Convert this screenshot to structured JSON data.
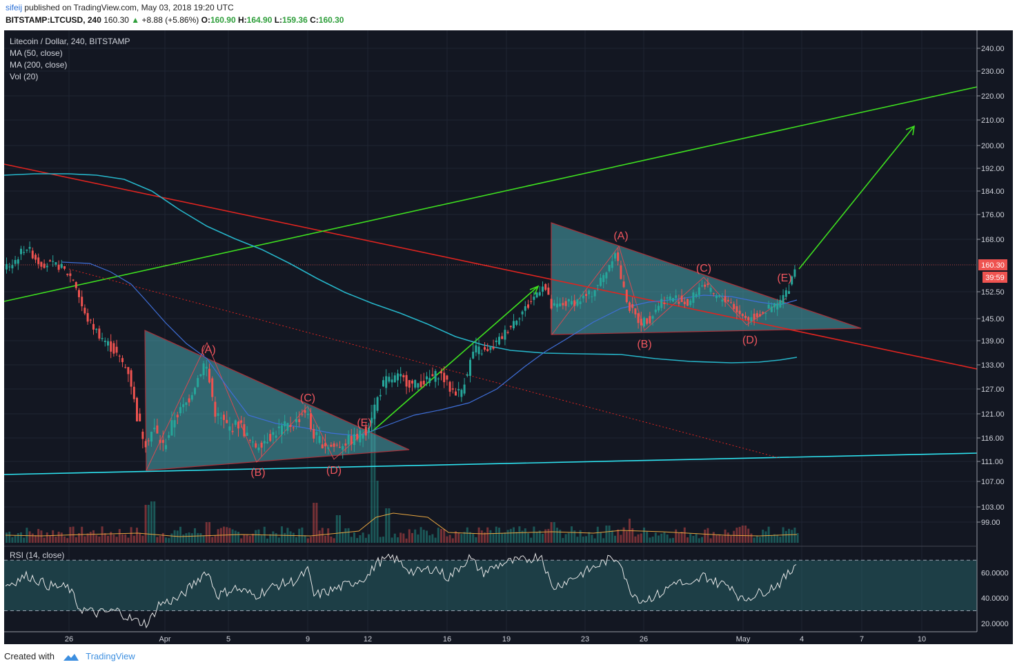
{
  "header": {
    "user": "sifeij",
    "published": "published on TradingView.com, May 03, 2018 19:20 UTC",
    "symbol": "BITSTAMP:LTCUSD, 240",
    "last": "160.30",
    "change": "+8.88 (+5.86%)",
    "o_label": "O:",
    "o": "160.90",
    "h_label": "H:",
    "h": "164.90",
    "l_label": "L:",
    "l": "159.36",
    "c_label": "C:",
    "c": "160.30"
  },
  "legend": {
    "title": "Litecoin / Dollar, 240, BITSTAMP",
    "ma50": "MA (50, close)",
    "ma200": "MA (200, close)",
    "vol": "Vol (20)",
    "rsi": "RSI (14, close)"
  },
  "price_tag": "160.30",
  "time_tag": "39:59",
  "footer": {
    "created": "Created with",
    "brand": "TradingView"
  },
  "colors": {
    "background": "#131722",
    "up": "#26a69a",
    "down": "#ef5350",
    "ma50": "#3f6fd8",
    "ma200": "#26b5c9",
    "trend_red": "#e0241f",
    "trend_green": "#3ee01f",
    "trend_cyan": "#2ee3f0",
    "triangle_fill": "#4aa8b0",
    "rsi_line": "#e8e8e8"
  },
  "chart_data": {
    "type": "candlestick",
    "price_axis": [
      "240.00",
      "230.00",
      "220.00",
      "210.00",
      "200.00",
      "192.00",
      "184.00",
      "176.00",
      "168.00",
      "152.50",
      "145.00",
      "139.00",
      "133.00",
      "127.00",
      "121.00",
      "116.00",
      "111.00",
      "107.00",
      "103.00",
      "99.00"
    ],
    "price_axis_values": [
      240,
      230,
      220,
      210,
      200,
      192,
      184,
      176,
      168,
      152.5,
      145,
      139,
      133,
      127,
      121,
      116,
      111,
      107,
      103,
      99
    ],
    "x_axis": [
      "26",
      "Apr",
      "5",
      "9",
      "12",
      "16",
      "19",
      "23",
      "26",
      "May",
      "4",
      "7",
      "10"
    ],
    "rsi_axis": [
      "60.0000",
      "40.0000",
      "20.0000"
    ],
    "rsi_levels": [
      70,
      30
    ],
    "wave_labels_left": [
      "(A)",
      "(B)",
      "(C)",
      "(D)",
      "(E)"
    ],
    "wave_labels_right": [
      "(A)",
      "(B)",
      "(C)",
      "(D)",
      "(E)"
    ],
    "last_price": 160.3,
    "ohlc": {
      "open": 160.9,
      "high": 164.9,
      "low": 159.36,
      "close": 160.3
    }
  }
}
